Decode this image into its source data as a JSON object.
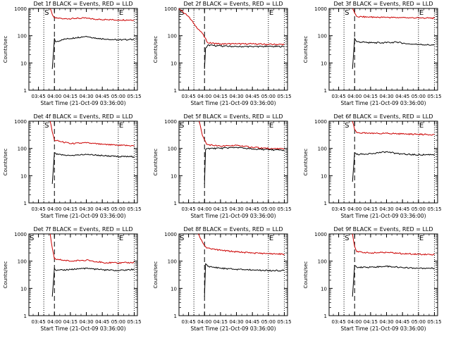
{
  "figure": {
    "background": "#ffffff",
    "colors": {
      "events": "#000000",
      "lld": "#cc0000",
      "axis": "#000000"
    }
  },
  "chart_data": [
    {
      "type": "line",
      "scale_y": "log",
      "title": "Det 1f BLACK = Events, RED = LLD",
      "xlabel": "Start Time (21-Oct-09 03:36:00)",
      "ylabel": "Counts/sec",
      "xlim": [
        "03:36",
        "05:18"
      ],
      "ylim": [
        1,
        1000
      ],
      "x_ticks": [
        "03:45",
        "04:00",
        "04:15",
        "04:30",
        "04:45",
        "05:00",
        "05:15"
      ],
      "y_ticks": [
        "1",
        "10",
        "100",
        "1000"
      ],
      "markers": {
        "S": "03:50",
        "E": "05:00"
      },
      "lines": {
        "dotted": [
          "03:50",
          "05:00",
          "05:15"
        ],
        "dashed": [
          "04:00"
        ]
      },
      "series": [
        {
          "color": "red",
          "x": [
            "03:56",
            "03:58",
            "04:00",
            "04:10",
            "04:20",
            "04:28",
            "04:40",
            "04:50",
            "05:00",
            "05:15"
          ],
          "y": [
            1000,
            600,
            450,
            420,
            430,
            440,
            400,
            390,
            380,
            380
          ]
        },
        {
          "color": "black",
          "x": [
            "03:58",
            "04:00",
            "04:01",
            "04:10",
            "04:20",
            "04:30",
            "04:40",
            "04:50",
            "05:00",
            "05:10",
            "05:15"
          ],
          "y": [
            6,
            80,
            60,
            75,
            85,
            95,
            80,
            75,
            70,
            72,
            75
          ]
        }
      ]
    },
    {
      "type": "line",
      "scale_y": "log",
      "title": "Det 2f BLACK = Events, RED = LLD",
      "xlabel": "Start Time (21-Oct-09 03:36:00)",
      "ylabel": "Counts/sec",
      "xlim": [
        "03:36",
        "05:18"
      ],
      "ylim": [
        1,
        1000
      ],
      "x_ticks": [
        "03:45",
        "04:00",
        "04:15",
        "04:30",
        "04:45",
        "05:00",
        "05:15"
      ],
      "y_ticks": [
        "1",
        "10",
        "100",
        "1000"
      ],
      "markers": {
        "S": "03:36",
        "E": "05:00"
      },
      "lines": {
        "dotted": [
          "03:50",
          "05:00",
          "05:15"
        ],
        "dashed": [
          "04:00"
        ]
      },
      "series": [
        {
          "color": "red",
          "x": [
            "03:36",
            "03:45",
            "03:52",
            "03:58",
            "04:03",
            "04:15",
            "04:30",
            "04:45",
            "05:00",
            "05:15"
          ],
          "y": [
            1000,
            500,
            220,
            120,
            55,
            50,
            50,
            50,
            48,
            48
          ]
        },
        {
          "color": "black",
          "x": [
            "04:00",
            "04:01",
            "04:03",
            "04:15",
            "04:30",
            "04:45",
            "05:00",
            "05:15"
          ],
          "y": [
            6,
            35,
            45,
            42,
            40,
            40,
            40,
            40
          ]
        }
      ]
    },
    {
      "type": "line",
      "scale_y": "log",
      "title": "Det 3f BLACK = Events, RED = LLD",
      "xlabel": "Start Time (21-Oct-09 03:36:00)",
      "ylabel": "Counts/sec",
      "xlim": [
        "03:36",
        "05:18"
      ],
      "ylim": [
        1,
        1000
      ],
      "x_ticks": [
        "03:45",
        "04:00",
        "04:15",
        "04:30",
        "04:45",
        "05:00",
        "05:15"
      ],
      "y_ticks": [
        "1",
        "10",
        "100",
        "1000"
      ],
      "markers": {
        "S": "03:50",
        "E": "05:00"
      },
      "lines": {
        "dotted": [
          "03:50",
          "05:00",
          "05:15"
        ],
        "dashed": [
          "04:00"
        ]
      },
      "series": [
        {
          "color": "red",
          "x": [
            "03:58",
            "04:00",
            "04:02",
            "04:15",
            "04:30",
            "04:45",
            "05:00",
            "05:15"
          ],
          "y": [
            1000,
            700,
            500,
            480,
            470,
            460,
            450,
            440
          ]
        },
        {
          "color": "black",
          "x": [
            "03:58",
            "04:00",
            "04:02",
            "04:15",
            "04:30",
            "04:40",
            "04:50",
            "05:00",
            "05:15"
          ],
          "y": [
            6,
            80,
            60,
            55,
            55,
            58,
            50,
            48,
            45
          ]
        }
      ]
    },
    {
      "type": "line",
      "scale_y": "log",
      "title": "Det 4f BLACK = Events, RED = LLD",
      "xlabel": "Start Time (21-Oct-09 03:36:00)",
      "ylabel": "Counts/sec",
      "xlim": [
        "03:36",
        "05:18"
      ],
      "ylim": [
        1,
        1000
      ],
      "x_ticks": [
        "03:45",
        "04:00",
        "04:15",
        "04:30",
        "04:45",
        "05:00",
        "05:15"
      ],
      "y_ticks": [
        "1",
        "10",
        "100",
        "1000"
      ],
      "markers": {
        "S": "03:50",
        "E": "05:00"
      },
      "lines": {
        "dotted": [
          "03:50",
          "05:00",
          "05:15"
        ],
        "dashed": [
          "04:00"
        ]
      },
      "series": [
        {
          "color": "red",
          "x": [
            "03:56",
            "03:58",
            "04:00",
            "04:15",
            "04:30",
            "04:45",
            "05:00",
            "05:15"
          ],
          "y": [
            1000,
            400,
            200,
            150,
            160,
            140,
            130,
            125
          ]
        },
        {
          "color": "black",
          "x": [
            "03:58",
            "04:00",
            "04:02",
            "04:15",
            "04:30",
            "04:45",
            "05:00",
            "05:15"
          ],
          "y": [
            5,
            70,
            60,
            55,
            60,
            55,
            50,
            50
          ]
        }
      ]
    },
    {
      "type": "line",
      "scale_y": "log",
      "title": "Det 5f BLACK = Events, RED = LLD",
      "xlabel": "Start Time (21-Oct-09 03:36:00)",
      "ylabel": "Counts/sec",
      "xlim": [
        "03:36",
        "05:18"
      ],
      "ylim": [
        1,
        1000
      ],
      "x_ticks": [
        "03:45",
        "04:00",
        "04:15",
        "04:30",
        "04:45",
        "05:00",
        "05:15"
      ],
      "y_ticks": [
        "1",
        "10",
        "100",
        "1000"
      ],
      "markers": {
        "S": "03:36",
        "E": "05:00"
      },
      "lines": {
        "dotted": [
          "03:50",
          "05:00",
          "05:15"
        ],
        "dashed": [
          "04:00"
        ]
      },
      "series": [
        {
          "color": "red",
          "x": [
            "03:55",
            "03:58",
            "04:02",
            "04:15",
            "04:30",
            "04:45",
            "05:00",
            "05:15"
          ],
          "y": [
            1000,
            300,
            140,
            120,
            130,
            110,
            100,
            95
          ]
        },
        {
          "color": "black",
          "x": [
            "04:00",
            "04:01",
            "04:03",
            "04:15",
            "04:30",
            "04:45",
            "05:00",
            "05:15"
          ],
          "y": [
            5,
            90,
            100,
            100,
            110,
            95,
            90,
            85
          ]
        }
      ]
    },
    {
      "type": "line",
      "scale_y": "log",
      "title": "Det 6f BLACK = Events, RED = LLD",
      "xlabel": "Start Time (21-Oct-09 03:36:00)",
      "ylabel": "Counts/sec",
      "xlim": [
        "03:36",
        "05:18"
      ],
      "ylim": [
        1,
        1000
      ],
      "x_ticks": [
        "03:45",
        "04:00",
        "04:15",
        "04:30",
        "04:45",
        "05:00",
        "05:15"
      ],
      "y_ticks": [
        "1",
        "10",
        "100",
        "1000"
      ],
      "markers": {
        "S": "03:50",
        "E": "05:00"
      },
      "lines": {
        "dotted": [
          "03:50",
          "05:00",
          "05:15"
        ],
        "dashed": [
          "04:00"
        ]
      },
      "series": [
        {
          "color": "red",
          "x": [
            "03:58",
            "04:00",
            "04:02",
            "04:15",
            "04:30",
            "04:45",
            "05:00",
            "05:15"
          ],
          "y": [
            1000,
            500,
            380,
            350,
            360,
            340,
            330,
            320
          ]
        },
        {
          "color": "black",
          "x": [
            "03:58",
            "04:00",
            "04:02",
            "04:15",
            "04:30",
            "04:40",
            "04:50",
            "05:00",
            "05:15"
          ],
          "y": [
            6,
            70,
            60,
            65,
            75,
            65,
            60,
            58,
            60
          ]
        }
      ]
    },
    {
      "type": "line",
      "scale_y": "log",
      "title": "Det 7f BLACK = Events, RED = LLD",
      "xlabel": "Start Time (21-Oct-09 03:36:00)",
      "ylabel": "Counts/sec",
      "xlim": [
        "03:36",
        "05:18"
      ],
      "ylim": [
        1,
        1000
      ],
      "x_ticks": [
        "03:45",
        "04:00",
        "04:15",
        "04:30",
        "04:45",
        "05:00",
        "05:15"
      ],
      "y_ticks": [
        "1",
        "10",
        "100",
        "1000"
      ],
      "markers": {
        "S": "03:36",
        "E": "05:00"
      },
      "lines": {
        "dotted": [
          "03:50",
          "05:00",
          "05:15"
        ],
        "dashed": [
          "04:00"
        ]
      },
      "series": [
        {
          "color": "red",
          "x": [
            "03:56",
            "03:58",
            "04:00",
            "04:15",
            "04:30",
            "04:45",
            "05:00",
            "05:15"
          ],
          "y": [
            1000,
            300,
            120,
            100,
            110,
            90,
            85,
            90
          ]
        },
        {
          "color": "black",
          "x": [
            "03:58",
            "04:00",
            "04:02",
            "04:15",
            "04:30",
            "04:45",
            "05:00",
            "05:15"
          ],
          "y": [
            5,
            55,
            45,
            50,
            55,
            48,
            45,
            50
          ]
        }
      ]
    },
    {
      "type": "line",
      "scale_y": "log",
      "title": "Det 8f BLACK = Events, RED = LLD",
      "xlabel": "Start Time (21-Oct-09 03:36:00)",
      "ylabel": "Counts/sec",
      "xlim": [
        "03:36",
        "05:18"
      ],
      "ylim": [
        1,
        1000
      ],
      "x_ticks": [
        "03:45",
        "04:00",
        "04:15",
        "04:30",
        "04:45",
        "05:00",
        "05:15"
      ],
      "y_ticks": [
        "1",
        "10",
        "100",
        "1000"
      ],
      "markers": {
        "S": "03:36",
        "E": "05:00"
      },
      "lines": {
        "dotted": [
          "03:50",
          "05:00",
          "05:15"
        ],
        "dashed": [
          "04:00"
        ]
      },
      "series": [
        {
          "color": "red",
          "x": [
            "03:54",
            "03:58",
            "04:02",
            "04:15",
            "04:30",
            "04:45",
            "05:00",
            "05:15"
          ],
          "y": [
            1000,
            500,
            300,
            250,
            220,
            200,
            190,
            180
          ]
        },
        {
          "color": "black",
          "x": [
            "04:00",
            "04:01",
            "04:03",
            "04:15",
            "04:30",
            "04:45",
            "05:00",
            "05:15"
          ],
          "y": [
            5,
            80,
            65,
            55,
            50,
            48,
            45,
            45
          ]
        }
      ]
    },
    {
      "type": "line",
      "scale_y": "log",
      "title": "Det 9f BLACK = Events, RED = LLD",
      "xlabel": "Start Time (21-Oct-09 03:36:00)",
      "ylabel": "Counts/sec",
      "xlim": [
        "03:36",
        "05:18"
      ],
      "ylim": [
        1,
        1000
      ],
      "x_ticks": [
        "03:45",
        "04:00",
        "04:15",
        "04:30",
        "04:45",
        "05:00",
        "05:15"
      ],
      "y_ticks": [
        "1",
        "10",
        "100",
        "1000"
      ],
      "markers": {
        "S": "03:50",
        "E": "05:00"
      },
      "lines": {
        "dotted": [
          "03:50",
          "05:00",
          "05:15"
        ],
        "dashed": [
          "04:00"
        ]
      },
      "series": [
        {
          "color": "red",
          "x": [
            "03:58",
            "04:00",
            "04:02",
            "04:15",
            "04:30",
            "04:45",
            "05:00",
            "05:15"
          ],
          "y": [
            1000,
            350,
            220,
            200,
            210,
            190,
            180,
            175
          ]
        },
        {
          "color": "black",
          "x": [
            "03:58",
            "04:00",
            "04:02",
            "04:15",
            "04:30",
            "04:45",
            "05:00",
            "05:15"
          ],
          "y": [
            5,
            70,
            60,
            60,
            65,
            58,
            55,
            55
          ]
        }
      ]
    }
  ]
}
